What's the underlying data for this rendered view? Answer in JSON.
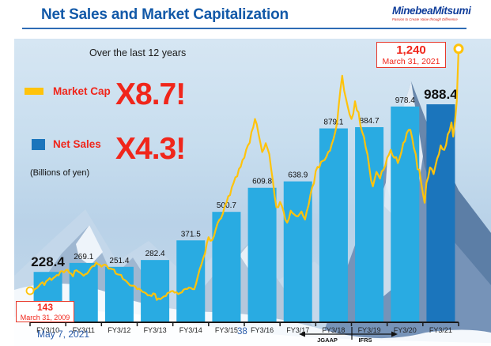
{
  "header": {
    "title": "Net Sales and Market Capitalization",
    "logo_name": "MinebeaMitsumi",
    "logo_tagline": "Passion to Create Value through Difference"
  },
  "annotations": {
    "subtitle": "Over the last 12 years",
    "market_cap_multiple": "X8.7!",
    "net_sales_multiple": "X4.3!",
    "units_note": "(Billions of yen)",
    "start_callout": {
      "value": "143",
      "date": "March 31, 2009"
    },
    "end_callout": {
      "value": "1,240",
      "date": "March 31, 2021"
    },
    "standards": {
      "left": "JGAAP",
      "right": "IFRS"
    }
  },
  "legend": {
    "market_cap": {
      "label": "Market Cap",
      "color": "#FFC30B"
    },
    "net_sales": {
      "label": "Net Sales",
      "color": "#1B75BC"
    }
  },
  "footer": {
    "date_note": "May 7, 2021",
    "page_number": "38"
  },
  "colors": {
    "title_blue": "#1259A8",
    "red_accent": "#F0261B",
    "bar_blue": "#29ABE2",
    "bar_dark_blue": "#1B75BC",
    "line_gold": "#FFC30B",
    "axis_black": "#1a1a1a",
    "footer_blue": "#2A5CAA"
  },
  "chart_data": {
    "type": "bar+line",
    "title": "Net Sales and Market Capitalization",
    "unit": "billions of yen",
    "ylim": [
      0,
      1300
    ],
    "categories": [
      "FY3/10",
      "FY3/11",
      "FY3/12",
      "FY3/13",
      "FY3/14",
      "FY3/15",
      "FY3/16",
      "FY3/17",
      "FY3/18",
      "FY3/19",
      "FY3/20",
      "FY3/21"
    ],
    "bar_series": {
      "name": "Net Sales",
      "color": "#29ABE2",
      "highlight_last_color": "#1B75BC",
      "emphasized_label_indexes": [
        0,
        11
      ],
      "values": [
        228.4,
        269.1,
        251.4,
        282.4,
        371.5,
        500.7,
        609.8,
        638.9,
        879.1,
        884.7,
        978.4,
        988.4
      ]
    },
    "line_series": {
      "name": "Market Cap",
      "color": "#FFC30B",
      "x_unit": "years since March 31, 2009",
      "start": {
        "value": 143,
        "date": "March 31, 2009"
      },
      "end": {
        "value": 1240,
        "date": "March 31, 2021"
      },
      "points": [
        [
          0.0,
          143
        ],
        [
          0.15,
          152
        ],
        [
          0.3,
          176
        ],
        [
          0.5,
          192
        ],
        [
          0.7,
          206
        ],
        [
          0.9,
          232
        ],
        [
          1.0,
          236
        ],
        [
          1.15,
          221
        ],
        [
          1.3,
          236
        ],
        [
          1.5,
          211
        ],
        [
          1.7,
          246
        ],
        [
          1.85,
          271
        ],
        [
          2.0,
          252
        ],
        [
          2.15,
          256
        ],
        [
          2.3,
          241
        ],
        [
          2.5,
          216
        ],
        [
          2.7,
          186
        ],
        [
          2.85,
          166
        ],
        [
          3.0,
          150
        ],
        [
          3.15,
          138
        ],
        [
          3.3,
          122
        ],
        [
          3.45,
          131
        ],
        [
          3.6,
          108
        ],
        [
          3.75,
          118
        ],
        [
          3.9,
          135
        ],
        [
          4.0,
          142
        ],
        [
          4.15,
          128
        ],
        [
          4.3,
          148
        ],
        [
          4.45,
          158
        ],
        [
          4.6,
          150
        ],
        [
          4.7,
          210
        ],
        [
          4.8,
          262
        ],
        [
          4.9,
          312
        ],
        [
          5.0,
          386
        ],
        [
          5.1,
          372
        ],
        [
          5.2,
          422
        ],
        [
          5.35,
          472
        ],
        [
          5.5,
          542
        ],
        [
          5.65,
          612
        ],
        [
          5.8,
          662
        ],
        [
          5.9,
          706
        ],
        [
          6.0,
          746
        ],
        [
          6.1,
          802
        ],
        [
          6.2,
          862
        ],
        [
          6.3,
          922
        ],
        [
          6.4,
          852
        ],
        [
          6.5,
          772
        ],
        [
          6.6,
          812
        ],
        [
          6.7,
          762
        ],
        [
          6.8,
          642
        ],
        [
          6.9,
          522
        ],
        [
          7.0,
          546
        ],
        [
          7.1,
          502
        ],
        [
          7.2,
          452
        ],
        [
          7.3,
          506
        ],
        [
          7.45,
          482
        ],
        [
          7.6,
          502
        ],
        [
          7.7,
          466
        ],
        [
          7.8,
          532
        ],
        [
          7.9,
          612
        ],
        [
          8.0,
          686
        ],
        [
          8.1,
          702
        ],
        [
          8.2,
          732
        ],
        [
          8.35,
          772
        ],
        [
          8.5,
          832
        ],
        [
          8.6,
          906
        ],
        [
          8.74,
          1118
        ],
        [
          8.85,
          1012
        ],
        [
          9.0,
          922
        ],
        [
          9.1,
          1002
        ],
        [
          9.2,
          952
        ],
        [
          9.3,
          862
        ],
        [
          9.4,
          792
        ],
        [
          9.5,
          702
        ],
        [
          9.6,
          616
        ],
        [
          9.7,
          682
        ],
        [
          9.8,
          652
        ],
        [
          9.9,
          692
        ],
        [
          10.0,
          746
        ],
        [
          10.1,
          782
        ],
        [
          10.2,
          746
        ],
        [
          10.3,
          722
        ],
        [
          10.4,
          772
        ],
        [
          10.5,
          822
        ],
        [
          10.6,
          872
        ],
        [
          10.7,
          836
        ],
        [
          10.8,
          762
        ],
        [
          10.9,
          692
        ],
        [
          11.0,
          586
        ],
        [
          11.05,
          542
        ],
        [
          11.1,
          632
        ],
        [
          11.2,
          702
        ],
        [
          11.3,
          672
        ],
        [
          11.4,
          742
        ],
        [
          11.5,
          802
        ],
        [
          11.6,
          782
        ],
        [
          11.7,
          852
        ],
        [
          11.8,
          906
        ],
        [
          11.85,
          842
        ],
        [
          11.9,
          912
        ],
        [
          11.95,
          1002
        ],
        [
          12.0,
          1240
        ]
      ]
    }
  }
}
